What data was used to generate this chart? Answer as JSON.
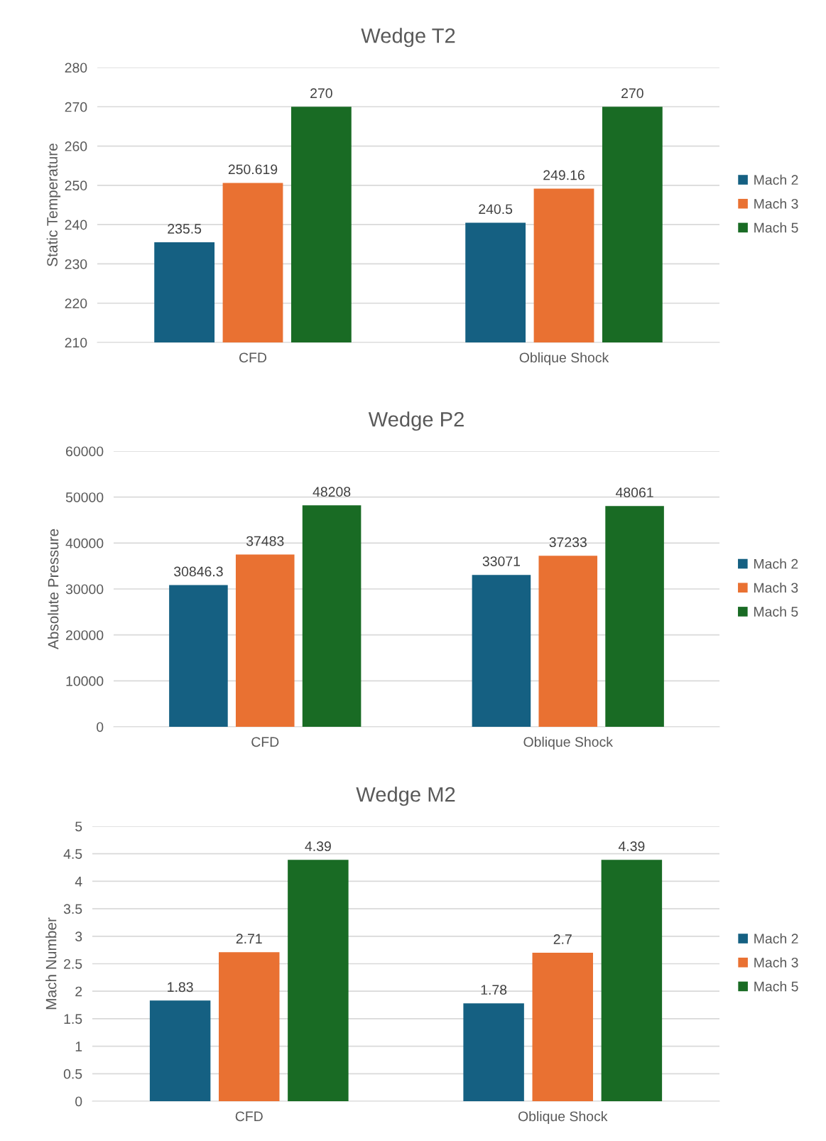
{
  "chart_data": [
    {
      "type": "bar",
      "title": "Wedge T2",
      "ylabel": "Static Temperature",
      "categories": [
        "CFD",
        "Oblique Shock"
      ],
      "series": [
        {
          "name": "Mach 2",
          "color": "#156082",
          "values": [
            235.5,
            240.5
          ]
        },
        {
          "name": "Mach 3",
          "color": "#e97132",
          "values": [
            250.619,
            249.16
          ]
        },
        {
          "name": "Mach 5",
          "color": "#196b24",
          "values": [
            270,
            270
          ]
        }
      ],
      "ylim": [
        210,
        280
      ],
      "yticks": [
        210,
        220,
        230,
        240,
        250,
        260,
        270,
        280
      ],
      "grid": "y",
      "legend": "right",
      "data_labels": true
    },
    {
      "type": "bar",
      "title": "Wedge P2",
      "ylabel": "Absolute Pressure",
      "categories": [
        "CFD",
        "Oblique Shock"
      ],
      "series": [
        {
          "name": "Mach 2",
          "color": "#156082",
          "values": [
            30846.3,
            33071
          ]
        },
        {
          "name": "Mach 3",
          "color": "#e97132",
          "values": [
            37483,
            37233
          ]
        },
        {
          "name": "Mach 5",
          "color": "#196b24",
          "values": [
            48208,
            48061
          ]
        }
      ],
      "ylim": [
        0,
        60000
      ],
      "yticks": [
        0,
        10000,
        20000,
        30000,
        40000,
        50000,
        60000
      ],
      "grid": "y",
      "legend": "right",
      "data_labels": true
    },
    {
      "type": "bar",
      "title": "Wedge M2",
      "ylabel": "Mach Number",
      "categories": [
        "CFD",
        "Oblique Shock"
      ],
      "series": [
        {
          "name": "Mach 2",
          "color": "#156082",
          "values": [
            1.83,
            1.78
          ]
        },
        {
          "name": "Mach 3",
          "color": "#e97132",
          "values": [
            2.71,
            2.7
          ]
        },
        {
          "name": "Mach 5",
          "color": "#196b24",
          "values": [
            4.39,
            4.39
          ]
        }
      ],
      "ylim": [
        0,
        5
      ],
      "yticks": [
        0,
        0.5,
        1,
        1.5,
        2,
        2.5,
        3,
        3.5,
        4,
        4.5,
        5
      ],
      "grid": "y",
      "legend": "right",
      "data_labels": true
    }
  ]
}
